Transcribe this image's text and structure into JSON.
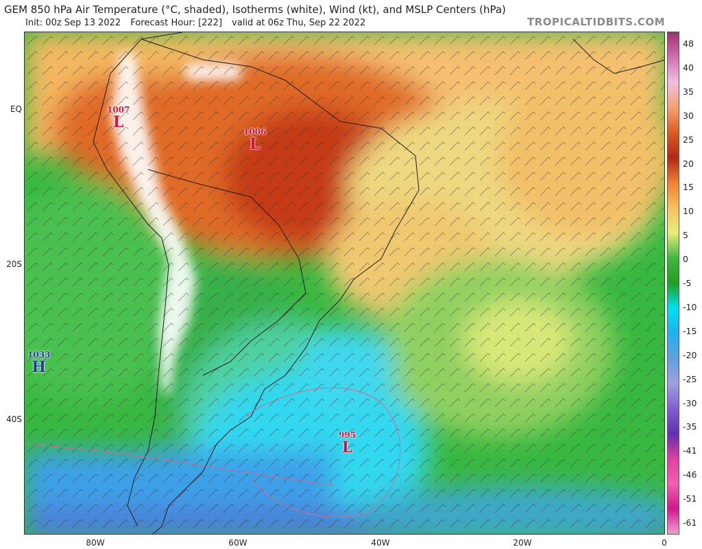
{
  "header": {
    "title": "GEM 850 hPa Air Temperature (°C, shaded), Isotherms (white), Wind (kt), and MSLP Centers (hPa)",
    "init": "Init: 00z Sep 13 2022",
    "forecast_hour": "Forecast Hour: [222]",
    "valid": "valid at 06z Thu, Sep 22 2022",
    "brand": "TROPICALTIDBITS.COM"
  },
  "axes": {
    "lat_labels": [
      "EQ",
      "20S",
      "40S"
    ],
    "lon_labels": [
      "80W",
      "60W",
      "40W",
      "20W",
      "0"
    ]
  },
  "colorbar": {
    "labels": [
      "48",
      "40",
      "35",
      "30",
      "25",
      "20",
      "15",
      "10",
      "5",
      "0",
      "-5",
      "-10",
      "-15",
      "-20",
      "-25",
      "-30",
      "-35",
      "-41",
      "-46",
      "-51",
      "-61"
    ],
    "colors": [
      "#a0306e",
      "#d070b0",
      "#f0c0e0",
      "#f7a070",
      "#e05c20",
      "#b02818",
      "#f08030",
      "#f5c060",
      "#e8ee78",
      "#40b840",
      "#20a020",
      "#00e0f0",
      "#20b0f0",
      "#60a0e0",
      "#a0a0e0",
      "#8060d0",
      "#6030b0",
      "#e040a0",
      "#f060b0",
      "#d01890",
      "#f0a0d0"
    ]
  },
  "pressure_centers": [
    {
      "type": "low",
      "pressure": "1007",
      "letter": "L"
    },
    {
      "type": "low",
      "pressure": "1006",
      "letter": "L"
    },
    {
      "type": "high",
      "pressure": "1033",
      "letter": "H"
    },
    {
      "type": "low",
      "pressure": "995",
      "letter": "L"
    }
  ]
}
